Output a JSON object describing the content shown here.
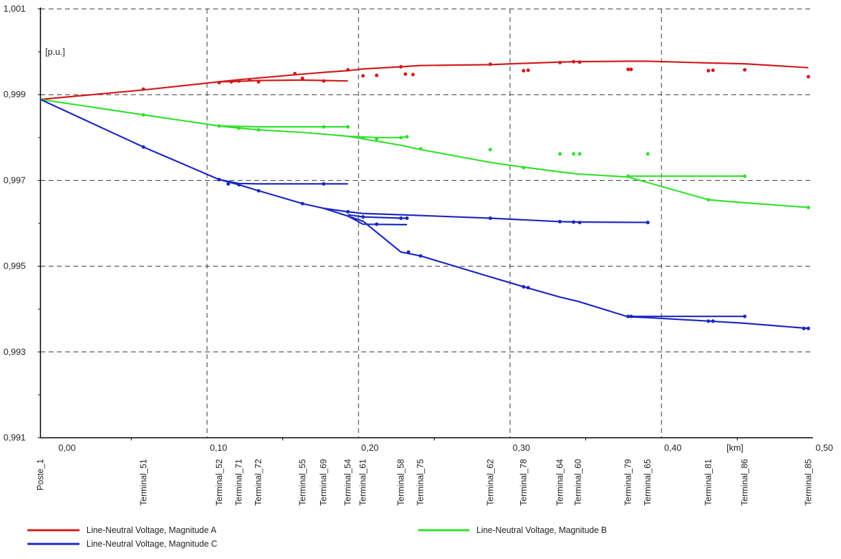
{
  "chart_data": {
    "type": "line",
    "title": "",
    "xlabel": "[km]",
    "ylabel": "[p.u.]",
    "xlim": [
      -0.01,
      0.5
    ],
    "ylim": [
      0.991,
      1.001
    ],
    "x_ticks": [
      {
        "value": 0.0,
        "label": "0,00"
      },
      {
        "value": 0.1,
        "label": "0,10"
      },
      {
        "value": 0.2,
        "label": "0,20"
      },
      {
        "value": 0.3,
        "label": "0,30"
      },
      {
        "value": 0.4,
        "label": "0,40"
      },
      {
        "value": 0.5,
        "label": "0,50"
      }
    ],
    "y_ticks": [
      {
        "value": 0.991,
        "label": "0,991"
      },
      {
        "value": 0.993,
        "label": "0,993"
      },
      {
        "value": 0.995,
        "label": "0,995"
      },
      {
        "value": 0.997,
        "label": "0,997"
      },
      {
        "value": 0.999,
        "label": "0,999"
      },
      {
        "value": 1.001,
        "label": "1,001"
      }
    ],
    "grid": true,
    "legend_position": "bottom",
    "terminals": [
      {
        "name": "Poste_1",
        "x": -0.01
      },
      {
        "name": "Terminal_51",
        "x": 0.058
      },
      {
        "name": "Terminal_52",
        "x": 0.108
      },
      {
        "name": "Terminal_71",
        "x": 0.121
      },
      {
        "name": "Terminal_72",
        "x": 0.134
      },
      {
        "name": "Terminal_55",
        "x": 0.163
      },
      {
        "name": "Terminal_69",
        "x": 0.177
      },
      {
        "name": "Terminal_54",
        "x": 0.193
      },
      {
        "name": "Terminal_61",
        "x": 0.203
      },
      {
        "name": "Terminal_58",
        "x": 0.228
      },
      {
        "name": "Terminal_75",
        "x": 0.241
      },
      {
        "name": "Terminal_62",
        "x": 0.287
      },
      {
        "name": "Terminal_78",
        "x": 0.309
      },
      {
        "name": "Terminal_64",
        "x": 0.333
      },
      {
        "name": "Terminal_60",
        "x": 0.345
      },
      {
        "name": "Terminal_79",
        "x": 0.378
      },
      {
        "name": "Terminal_65",
        "x": 0.391
      },
      {
        "name": "Terminal_81",
        "x": 0.431
      },
      {
        "name": "Terminal_86",
        "x": 0.455
      },
      {
        "name": "Terminal_85",
        "x": 0.497
      }
    ],
    "series": [
      {
        "name": "Line-Neutral Voltage, Magnitude A",
        "color": "#d21a1a",
        "branches": [
          {
            "x": [
              -0.01,
              0.058,
              0.108,
              0.121,
              0.134,
              0.163,
              0.177,
              0.193,
              0.203,
              0.228,
              0.241,
              0.287,
              0.309,
              0.333,
              0.345,
              0.378,
              0.391,
              0.431,
              0.455,
              0.497
            ],
            "y": [
              0.99889,
              0.99911,
              0.9993,
              0.99935,
              0.99939,
              0.99948,
              0.99952,
              0.99956,
              0.9996,
              0.99965,
              0.99968,
              0.9997,
              0.99973,
              0.99976,
              0.99977,
              0.99978,
              0.99978,
              0.99974,
              0.99972,
              0.99963
            ]
          },
          {
            "x": [
              0.108,
              0.121,
              0.134,
              0.163,
              0.177,
              0.193
            ],
            "y": [
              0.9993,
              0.99931,
              0.99933,
              0.99934,
              0.99933,
              0.99932
            ]
          }
        ],
        "markers": {
          "x": [
            0.058,
            0.108,
            0.116,
            0.121,
            0.128,
            0.134,
            0.158,
            0.163,
            0.177,
            0.193,
            0.203,
            0.212,
            0.228,
            0.231,
            0.236,
            0.287,
            0.309,
            0.312,
            0.333,
            0.342,
            0.346,
            0.378,
            0.38,
            0.431,
            0.434,
            0.455,
            0.497
          ],
          "y": [
            0.99913,
            0.99928,
            0.9993,
            0.99932,
            0.99935,
            0.9993,
            0.99949,
            0.99938,
            0.99932,
            0.99958,
            0.99944,
            0.99945,
            0.99965,
            0.99948,
            0.99947,
            0.99971,
            0.99956,
            0.99957,
            0.99975,
            0.99977,
            0.99976,
            0.99959,
            0.99959,
            0.99956,
            0.99957,
            0.99958,
            0.99942
          ]
        }
      },
      {
        "name": "Line-Neutral Voltage, Magnitude B",
        "color": "#33e02c",
        "branches": [
          {
            "x": [
              -0.01,
              0.058,
              0.108,
              0.121,
              0.134,
              0.163,
              0.177,
              0.193,
              0.203,
              0.228,
              0.241,
              0.287,
              0.309,
              0.333,
              0.345,
              0.378,
              0.391,
              0.431,
              0.455,
              0.497
            ],
            "y": [
              0.99889,
              0.99853,
              0.99827,
              0.99822,
              0.99818,
              0.99812,
              0.99808,
              0.99803,
              0.99797,
              0.99782,
              0.99772,
              0.99742,
              0.99731,
              0.9972,
              0.99715,
              0.99708,
              0.99695,
              0.99655,
              0.99648,
              0.99637
            ]
          },
          {
            "x": [
              0.108,
              0.121,
              0.134,
              0.163,
              0.177,
              0.193
            ],
            "y": [
              0.99827,
              0.99826,
              0.99825,
              0.99825,
              0.99825,
              0.99825
            ]
          },
          {
            "x": [
              0.378,
              0.391,
              0.431,
              0.455
            ],
            "y": [
              0.9971,
              0.9971,
              0.9971,
              0.9971
            ]
          },
          {
            "x": [
              0.193,
              0.212,
              0.228,
              0.232
            ],
            "y": [
              0.99803,
              0.998,
              0.998,
              0.99802
            ]
          }
        ],
        "markers": {
          "x": [
            0.058,
            0.108,
            0.121,
            0.134,
            0.177,
            0.193,
            0.203,
            0.212,
            0.228,
            0.232,
            0.241,
            0.287,
            0.309,
            0.333,
            0.342,
            0.346,
            0.378,
            0.391,
            0.431,
            0.455,
            0.497
          ],
          "y": [
            0.99853,
            0.99827,
            0.99822,
            0.99818,
            0.99825,
            0.99825,
            0.99799,
            0.99797,
            0.998,
            0.99802,
            0.99774,
            0.99772,
            0.9973,
            0.99762,
            0.99762,
            0.99762,
            0.9971,
            0.99762,
            0.99655,
            0.9971,
            0.99637
          ]
        }
      },
      {
        "name": "Line-Neutral Voltage, Magnitude C",
        "color": "#1b27c0",
        "branches": [
          {
            "x": [
              -0.01,
              0.058,
              0.108,
              0.121,
              0.134,
              0.163,
              0.177,
              0.193,
              0.203,
              0.228,
              0.241,
              0.287,
              0.309,
              0.333,
              0.345,
              0.378,
              0.391,
              0.431,
              0.455,
              0.497
            ],
            "y": [
              0.99889,
              0.99778,
              0.99702,
              0.9969,
              0.99676,
              0.99646,
              0.99635,
              0.99617,
              0.99605,
              0.99533,
              0.99524,
              0.99475,
              0.99452,
              0.99428,
              0.99418,
              0.99382,
              0.9938,
              0.99372,
              0.99367,
              0.99355
            ]
          },
          {
            "x": [
              0.108,
              0.121,
              0.134,
              0.163,
              0.177,
              0.193
            ],
            "y": [
              0.99702,
              0.99693,
              0.99692,
              0.99692,
              0.99692,
              0.99692
            ]
          },
          {
            "x": [
              0.177,
              0.193,
              0.203,
              0.228,
              0.287,
              0.333,
              0.345,
              0.391
            ],
            "y": [
              0.99635,
              0.99627,
              0.99623,
              0.9962,
              0.99612,
              0.99604,
              0.99603,
              0.99602
            ]
          },
          {
            "x": [
              0.193,
              0.203,
              0.228,
              0.232
            ],
            "y": [
              0.99617,
              0.99598,
              0.99597,
              0.99597
            ]
          },
          {
            "x": [
              0.193,
              0.203,
              0.228,
              0.232
            ],
            "y": [
              0.9962,
              0.99615,
              0.99612,
              0.99612
            ]
          },
          {
            "x": [
              0.378,
              0.391,
              0.431,
              0.455
            ],
            "y": [
              0.99383,
              0.99383,
              0.99383,
              0.99383
            ]
          }
        ],
        "markers": {
          "x": [
            0.058,
            0.108,
            0.114,
            0.121,
            0.134,
            0.163,
            0.177,
            0.193,
            0.203,
            0.212,
            0.228,
            0.232,
            0.233,
            0.241,
            0.287,
            0.309,
            0.312,
            0.333,
            0.342,
            0.346,
            0.378,
            0.38,
            0.391,
            0.431,
            0.434,
            0.455,
            0.494,
            0.497
          ],
          "y": [
            0.99778,
            0.99702,
            0.99692,
            0.9969,
            0.99676,
            0.99646,
            0.99692,
            0.99627,
            0.99615,
            0.99598,
            0.99612,
            0.99612,
            0.99533,
            0.99524,
            0.99612,
            0.99452,
            0.9945,
            0.99604,
            0.99603,
            0.99602,
            0.99383,
            0.99383,
            0.99602,
            0.99372,
            0.99372,
            0.99383,
            0.99355,
            0.99355
          ]
        }
      }
    ]
  }
}
